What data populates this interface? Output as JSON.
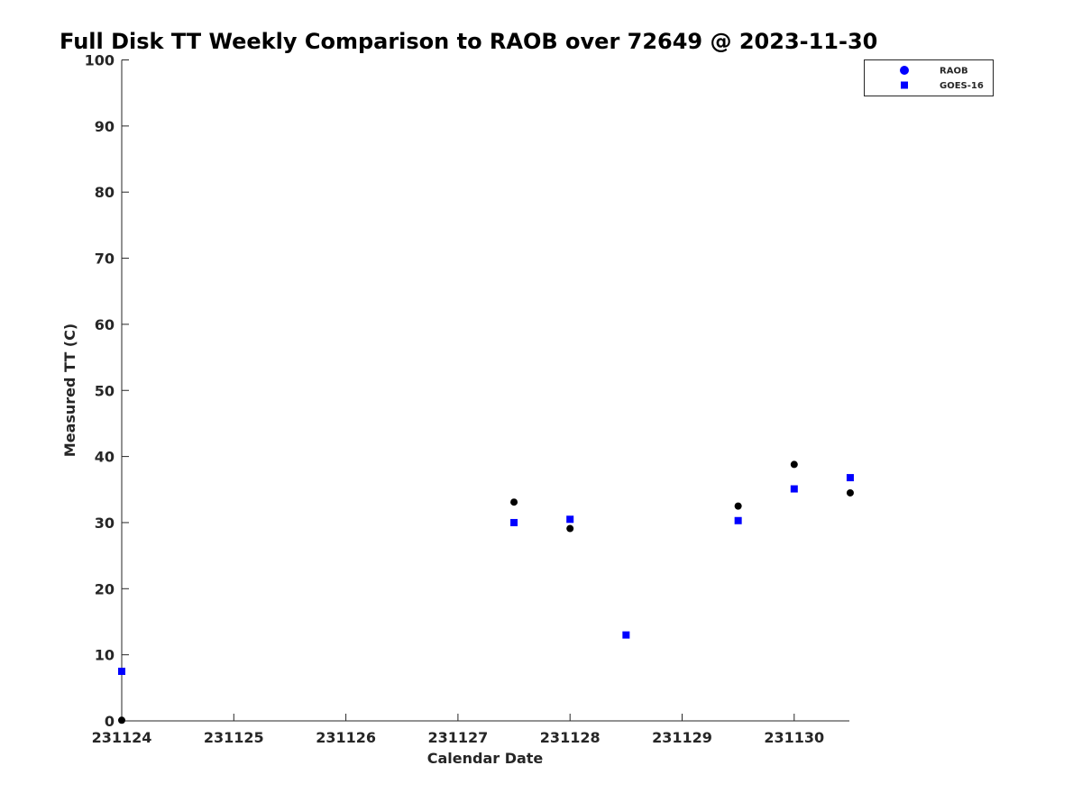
{
  "chart_data": {
    "type": "scatter",
    "title": "Full Disk TT Weekly Comparison to RAOB over 72649 @ 2023-11-30",
    "xlabel": "Calendar Date",
    "ylabel": "Measured TT (C)",
    "x_tick_labels": [
      "231124",
      "231125",
      "231126",
      "231127",
      "231128",
      "231129",
      "231130"
    ],
    "y_tick_labels": [
      "0",
      "10",
      "20",
      "30",
      "40",
      "50",
      "60",
      "70",
      "80",
      "90",
      "100"
    ],
    "xlim": [
      "231124",
      "231130 12Z"
    ],
    "ylim": [
      0,
      100
    ],
    "grid": false,
    "legend_position": "top-right",
    "series": [
      {
        "name": "RAOB",
        "marker": "circle",
        "color": "#000000",
        "legend_color": "#0000ff",
        "points": [
          {
            "x": "231124 00Z",
            "y": 0.1
          },
          {
            "x": "231127 12Z",
            "y": 33.1
          },
          {
            "x": "231128 00Z",
            "y": 29.1
          },
          {
            "x": "231129 12Z",
            "y": 32.5
          },
          {
            "x": "231130 00Z",
            "y": 38.8
          },
          {
            "x": "231130 12Z",
            "y": 34.5
          }
        ]
      },
      {
        "name": "GOES-16",
        "marker": "square",
        "color": "#0000ff",
        "legend_color": "#0000ff",
        "points": [
          {
            "x": "231124 00Z",
            "y": 7.5
          },
          {
            "x": "231127 12Z",
            "y": 30.0
          },
          {
            "x": "231128 00Z",
            "y": 30.5
          },
          {
            "x": "231128 12Z",
            "y": 13.0
          },
          {
            "x": "231129 12Z",
            "y": 30.3
          },
          {
            "x": "231130 00Z",
            "y": 35.1
          },
          {
            "x": "231130 12Z",
            "y": 36.8
          }
        ]
      }
    ]
  }
}
